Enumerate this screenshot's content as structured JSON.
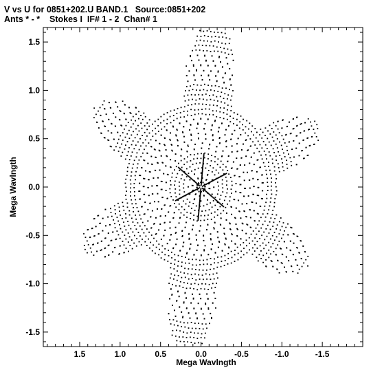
{
  "header": {
    "line1": "V vs U for 0851+202.U BAND.1   Source:0851+202",
    "line2": "Ants * - *    Stokes I  IF# 1 - 2  Chan# 1"
  },
  "chart_data": {
    "type": "scatter",
    "title": "V vs U for 0851+202.U BAND.1   Source:0851+202",
    "subtitle": "Ants * - *    Stokes I  IF# 1 - 2  Chan# 1",
    "xlabel": "Mega Wavlngth",
    "ylabel": "Mega Wavlngth",
    "xlim": [
      1.95,
      -2.0
    ],
    "ylim": [
      -1.65,
      1.65
    ],
    "x_reversed": true,
    "x_ticks": [
      1.5,
      1.0,
      0.5,
      0.0,
      -0.5,
      -1.0,
      -1.5
    ],
    "x_tick_labels": [
      "1.5",
      "1.0",
      "0.5",
      "0.0",
      "-0.5",
      "-1.0",
      "-1.5"
    ],
    "y_ticks": [
      -1.5,
      -1.0,
      -0.5,
      0.0,
      0.5,
      1.0,
      1.5
    ],
    "y_tick_labels": [
      "-1.5",
      "-1.0",
      "-0.5",
      "0.0",
      "0.5",
      "1.0",
      "1.5"
    ],
    "grid": false,
    "point_color": "#000000",
    "uv_tracks": {
      "arms": [
        {
          "pa_deg": 95,
          "max_radius": 1.85
        },
        {
          "pa_deg": 35,
          "max_radius": 1.6
        },
        {
          "pa_deg": -25,
          "max_radius": 1.62
        },
        {
          "pa_deg": -85,
          "max_radius": 1.88
        },
        {
          "pa_deg": -145,
          "max_radius": 1.58
        },
        {
          "pa_deg": 155,
          "max_radius": 1.6
        }
      ],
      "base_radius": 0.95,
      "arm_half_width_deg": 18,
      "ring_spacing": 0.055,
      "center": [
        0.0,
        0.0
      ]
    }
  }
}
